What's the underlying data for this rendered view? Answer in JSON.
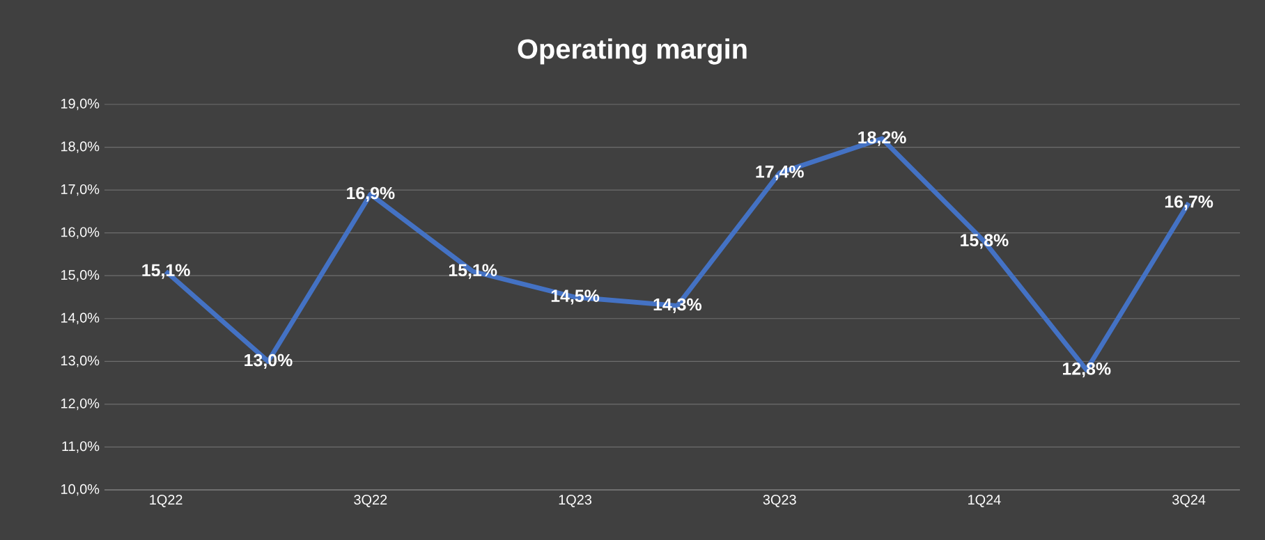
{
  "chart_data": {
    "type": "line",
    "title": "Operating margin",
    "categories": [
      "1Q22",
      null,
      "3Q22",
      null,
      "1Q23",
      null,
      "3Q23",
      null,
      "1Q24",
      null,
      "3Q24"
    ],
    "series": [
      {
        "color": "#4472c4",
        "values": [
          15.1,
          13.0,
          16.9,
          15.1,
          14.5,
          14.3,
          17.4,
          18.2,
          15.8,
          12.8,
          16.7
        ],
        "value_labels": [
          "15,1%",
          "13,0%",
          "16,9%",
          "15,1%",
          "14,5%",
          "14,3%",
          "17,4%",
          "18,2%",
          "15,8%",
          "12,8%",
          "16,7%"
        ]
      }
    ],
    "ylim": [
      10,
      19
    ],
    "yticks": [
      {
        "value": 10,
        "label": "10,0%"
      },
      {
        "value": 11,
        "label": "11,0%"
      },
      {
        "value": 12,
        "label": "12,0%"
      },
      {
        "value": 13,
        "label": "13,0%"
      },
      {
        "value": 14,
        "label": "14,0%"
      },
      {
        "value": 15,
        "label": "15,0%"
      },
      {
        "value": 16,
        "label": "16,0%"
      },
      {
        "value": 17,
        "label": "17,0%"
      },
      {
        "value": 18,
        "label": "18,0%"
      },
      {
        "value": 19,
        "label": "19,0%"
      }
    ],
    "grid": "y",
    "marker": "none",
    "line_style": "solid"
  }
}
